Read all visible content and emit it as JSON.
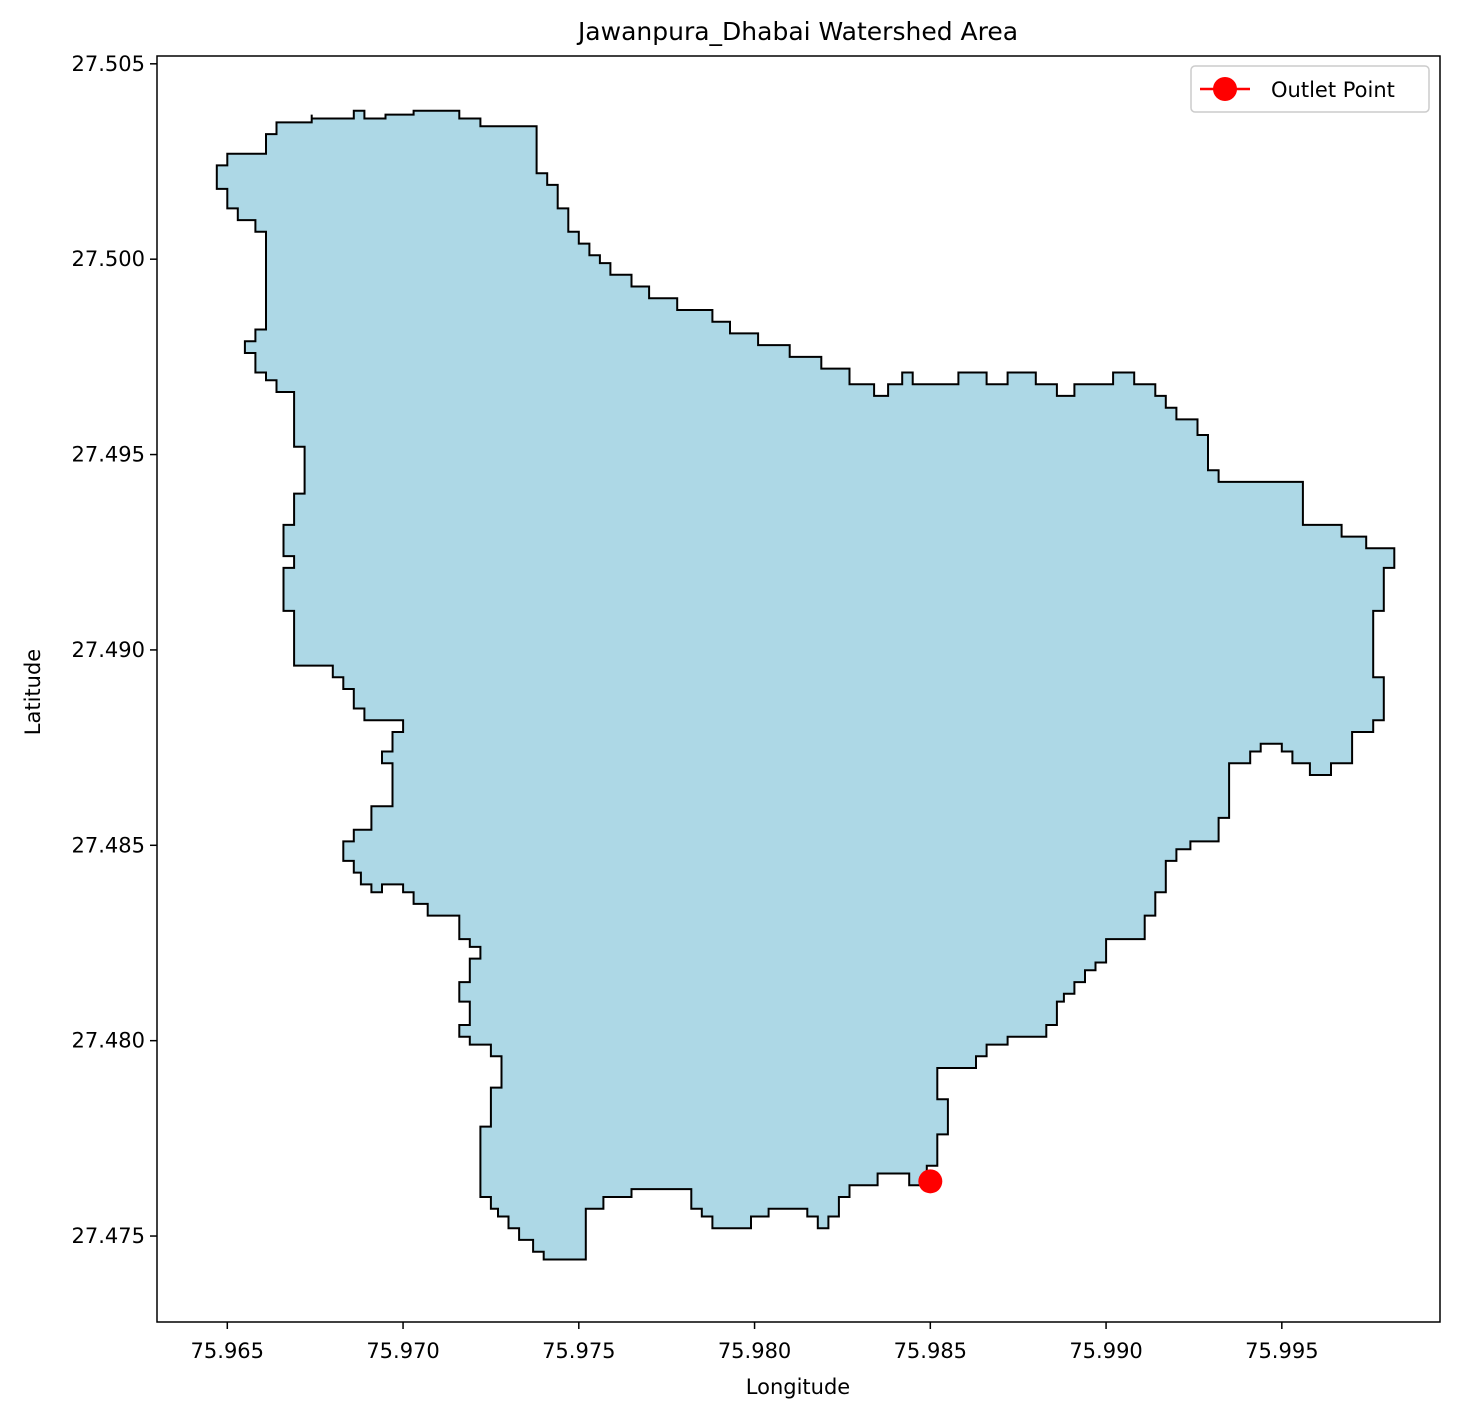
{
  "chart_data": {
    "type": "map",
    "title": "Jawanpura_Dhabai Watershed Area",
    "xlabel": "Longitude",
    "ylabel": "Latitude",
    "xlim": [
      75.963,
      75.9995
    ],
    "ylim": [
      27.4728,
      27.5052
    ],
    "x_ticks": [
      75.965,
      75.97,
      75.975,
      75.98,
      75.985,
      75.99,
      75.995
    ],
    "x_tick_labels": [
      "75.965",
      "75.970",
      "75.975",
      "75.980",
      "75.985",
      "75.990",
      "75.995"
    ],
    "y_ticks": [
      27.475,
      27.48,
      27.485,
      27.49,
      27.495,
      27.5,
      27.505
    ],
    "y_tick_labels": [
      "27.475",
      "27.480",
      "27.485",
      "27.490",
      "27.495",
      "27.500",
      "27.505"
    ],
    "grid": false,
    "legend": {
      "placement": "top-right",
      "entries": [
        {
          "label": "Outlet Point",
          "color": "#ff0000",
          "marker": "circle"
        }
      ]
    },
    "watershed_polygon": {
      "fill": "#add8e6",
      "edge": "#000000",
      "coords": [
        [
          75.9674,
          27.5037
        ],
        [
          75.9674,
          27.5036
        ],
        [
          75.9686,
          27.5036
        ],
        [
          75.9686,
          27.5038
        ],
        [
          75.9689,
          27.5038
        ],
        [
          75.9689,
          27.5036
        ],
        [
          75.9695,
          27.5036
        ],
        [
          75.9695,
          27.5037
        ],
        [
          75.9703,
          27.5037
        ],
        [
          75.9703,
          27.5038
        ],
        [
          75.9716,
          27.5038
        ],
        [
          75.9716,
          27.5036
        ],
        [
          75.9722,
          27.5036
        ],
        [
          75.9722,
          27.5034
        ],
        [
          75.9738,
          27.5034
        ],
        [
          75.9738,
          27.5022
        ],
        [
          75.9741,
          27.5022
        ],
        [
          75.9741,
          27.5019
        ],
        [
          75.9744,
          27.5019
        ],
        [
          75.9744,
          27.5013
        ],
        [
          75.9747,
          27.5013
        ],
        [
          75.9747,
          27.5007
        ],
        [
          75.975,
          27.5007
        ],
        [
          75.975,
          27.5004
        ],
        [
          75.9753,
          27.5004
        ],
        [
          75.9753,
          27.5001
        ],
        [
          75.9756,
          27.5001
        ],
        [
          75.9756,
          27.4999
        ],
        [
          75.9759,
          27.4999
        ],
        [
          75.9759,
          27.4996
        ],
        [
          75.9765,
          27.4996
        ],
        [
          75.9765,
          27.4993
        ],
        [
          75.977,
          27.4993
        ],
        [
          75.977,
          27.499
        ],
        [
          75.9778,
          27.499
        ],
        [
          75.9778,
          27.4987
        ],
        [
          75.9788,
          27.4987
        ],
        [
          75.9788,
          27.4984
        ],
        [
          75.9793,
          27.4984
        ],
        [
          75.9793,
          27.4981
        ],
        [
          75.9801,
          27.4981
        ],
        [
          75.9801,
          27.4978
        ],
        [
          75.981,
          27.4978
        ],
        [
          75.981,
          27.4975
        ],
        [
          75.9819,
          27.4975
        ],
        [
          75.9819,
          27.4972
        ],
        [
          75.9827,
          27.4972
        ],
        [
          75.9827,
          27.4968
        ],
        [
          75.9834,
          27.4968
        ],
        [
          75.9834,
          27.4965
        ],
        [
          75.9838,
          27.4965
        ],
        [
          75.9838,
          27.4968
        ],
        [
          75.9842,
          27.4968
        ],
        [
          75.9842,
          27.4971
        ],
        [
          75.9845,
          27.4971
        ],
        [
          75.9845,
          27.4968
        ],
        [
          75.9858,
          27.4968
        ],
        [
          75.9858,
          27.4971
        ],
        [
          75.9866,
          27.4971
        ],
        [
          75.9866,
          27.4968
        ],
        [
          75.9872,
          27.4968
        ],
        [
          75.9872,
          27.4971
        ],
        [
          75.988,
          27.4971
        ],
        [
          75.988,
          27.4968
        ],
        [
          75.9886,
          27.4968
        ],
        [
          75.9886,
          27.4965
        ],
        [
          75.9891,
          27.4965
        ],
        [
          75.9891,
          27.4968
        ],
        [
          75.9902,
          27.4968
        ],
        [
          75.9902,
          27.4971
        ],
        [
          75.9908,
          27.4971
        ],
        [
          75.9908,
          27.4968
        ],
        [
          75.9914,
          27.4968
        ],
        [
          75.9914,
          27.4965
        ],
        [
          75.9917,
          27.4965
        ],
        [
          75.9917,
          27.4962
        ],
        [
          75.992,
          27.4962
        ],
        [
          75.992,
          27.4959
        ],
        [
          75.9926,
          27.4959
        ],
        [
          75.9926,
          27.4955
        ],
        [
          75.9929,
          27.4955
        ],
        [
          75.9929,
          27.4946
        ],
        [
          75.9932,
          27.4946
        ],
        [
          75.9932,
          27.4943
        ],
        [
          75.9956,
          27.4943
        ],
        [
          75.9956,
          27.4932
        ],
        [
          75.9967,
          27.4932
        ],
        [
          75.9967,
          27.4929
        ],
        [
          75.9974,
          27.4929
        ],
        [
          75.9974,
          27.4926
        ],
        [
          75.9982,
          27.4926
        ],
        [
          75.9982,
          27.4921
        ],
        [
          75.9979,
          27.4921
        ],
        [
          75.9979,
          27.491
        ],
        [
          75.9976,
          27.491
        ],
        [
          75.9976,
          27.4893
        ],
        [
          75.9979,
          27.4893
        ],
        [
          75.9979,
          27.4882
        ],
        [
          75.9976,
          27.4882
        ],
        [
          75.9976,
          27.4879
        ],
        [
          75.997,
          27.4879
        ],
        [
          75.997,
          27.4871
        ],
        [
          75.9964,
          27.4871
        ],
        [
          75.9964,
          27.4868
        ],
        [
          75.9958,
          27.4868
        ],
        [
          75.9958,
          27.4871
        ],
        [
          75.9953,
          27.4871
        ],
        [
          75.9953,
          27.4874
        ],
        [
          75.995,
          27.4874
        ],
        [
          75.995,
          27.4876
        ],
        [
          75.9944,
          27.4876
        ],
        [
          75.9944,
          27.4874
        ],
        [
          75.9941,
          27.4874
        ],
        [
          75.9941,
          27.4871
        ],
        [
          75.9935,
          27.4871
        ],
        [
          75.9935,
          27.4857
        ],
        [
          75.9932,
          27.4857
        ],
        [
          75.9932,
          27.4851
        ],
        [
          75.9924,
          27.4851
        ],
        [
          75.9924,
          27.4849
        ],
        [
          75.992,
          27.4849
        ],
        [
          75.992,
          27.4846
        ],
        [
          75.9917,
          27.4846
        ],
        [
          75.9917,
          27.4838
        ],
        [
          75.9914,
          27.4838
        ],
        [
          75.9914,
          27.4832
        ],
        [
          75.9911,
          27.4832
        ],
        [
          75.9911,
          27.4826
        ],
        [
          75.99,
          27.4826
        ],
        [
          75.99,
          27.482
        ],
        [
          75.9897,
          27.482
        ],
        [
          75.9897,
          27.4818
        ],
        [
          75.9894,
          27.4818
        ],
        [
          75.9894,
          27.4815
        ],
        [
          75.9891,
          27.4815
        ],
        [
          75.9891,
          27.4812
        ],
        [
          75.9888,
          27.4812
        ],
        [
          75.9888,
          27.481
        ],
        [
          75.9886,
          27.481
        ],
        [
          75.9886,
          27.4804
        ],
        [
          75.9883,
          27.4804
        ],
        [
          75.9883,
          27.4801
        ],
        [
          75.9872,
          27.4801
        ],
        [
          75.9872,
          27.4799
        ],
        [
          75.9866,
          27.4799
        ],
        [
          75.9866,
          27.4796
        ],
        [
          75.9863,
          27.4796
        ],
        [
          75.9863,
          27.4793
        ],
        [
          75.9852,
          27.4793
        ],
        [
          75.9852,
          27.4785
        ],
        [
          75.9855,
          27.4785
        ],
        [
          75.9855,
          27.4776
        ],
        [
          75.9852,
          27.4776
        ],
        [
          75.9852,
          27.4768
        ],
        [
          75.9849,
          27.4768
        ],
        [
          75.9849,
          27.4763
        ],
        [
          75.9844,
          27.4763
        ],
        [
          75.9844,
          27.4766
        ],
        [
          75.9835,
          27.4766
        ],
        [
          75.9835,
          27.4763
        ],
        [
          75.9827,
          27.4763
        ],
        [
          75.9827,
          27.476
        ],
        [
          75.9824,
          27.476
        ],
        [
          75.9824,
          27.4755
        ],
        [
          75.9821,
          27.4755
        ],
        [
          75.9821,
          27.4752
        ],
        [
          75.9818,
          27.4752
        ],
        [
          75.9818,
          27.4755
        ],
        [
          75.9815,
          27.4755
        ],
        [
          75.9815,
          27.4757
        ],
        [
          75.9804,
          27.4757
        ],
        [
          75.9804,
          27.4755
        ],
        [
          75.9799,
          27.4755
        ],
        [
          75.9799,
          27.4752
        ],
        [
          75.9788,
          27.4752
        ],
        [
          75.9788,
          27.4755
        ],
        [
          75.9785,
          27.4755
        ],
        [
          75.9785,
          27.4757
        ],
        [
          75.9782,
          27.4757
        ],
        [
          75.9782,
          27.4762
        ],
        [
          75.9765,
          27.4762
        ],
        [
          75.9765,
          27.476
        ],
        [
          75.9757,
          27.476
        ],
        [
          75.9757,
          27.4757
        ],
        [
          75.9752,
          27.4757
        ],
        [
          75.9752,
          27.4744
        ],
        [
          75.974,
          27.4744
        ],
        [
          75.974,
          27.4746
        ],
        [
          75.9737,
          27.4746
        ],
        [
          75.9737,
          27.4749
        ],
        [
          75.9733,
          27.4749
        ],
        [
          75.9733,
          27.4752
        ],
        [
          75.973,
          27.4752
        ],
        [
          75.973,
          27.4755
        ],
        [
          75.9727,
          27.4755
        ],
        [
          75.9727,
          27.4757
        ],
        [
          75.9725,
          27.4757
        ],
        [
          75.9725,
          27.476
        ],
        [
          75.9722,
          27.476
        ],
        [
          75.9722,
          27.4778
        ],
        [
          75.9725,
          27.4778
        ],
        [
          75.9725,
          27.4788
        ],
        [
          75.9728,
          27.4788
        ],
        [
          75.9728,
          27.4796
        ],
        [
          75.9725,
          27.4796
        ],
        [
          75.9725,
          27.4799
        ],
        [
          75.9719,
          27.4799
        ],
        [
          75.9719,
          27.4801
        ],
        [
          75.9716,
          27.4801
        ],
        [
          75.9716,
          27.4804
        ],
        [
          75.9719,
          27.4804
        ],
        [
          75.9719,
          27.481
        ],
        [
          75.9716,
          27.481
        ],
        [
          75.9716,
          27.4815
        ],
        [
          75.9719,
          27.4815
        ],
        [
          75.9719,
          27.4821
        ],
        [
          75.9722,
          27.4821
        ],
        [
          75.9722,
          27.4824
        ],
        [
          75.9719,
          27.4824
        ],
        [
          75.9719,
          27.4826
        ],
        [
          75.9716,
          27.4826
        ],
        [
          75.9716,
          27.4832
        ],
        [
          75.9707,
          27.4832
        ],
        [
          75.9707,
          27.4835
        ],
        [
          75.9703,
          27.4835
        ],
        [
          75.9703,
          27.4838
        ],
        [
          75.97,
          27.4838
        ],
        [
          75.97,
          27.484
        ],
        [
          75.9694,
          27.484
        ],
        [
          75.9694,
          27.4838
        ],
        [
          75.9691,
          27.4838
        ],
        [
          75.9691,
          27.484
        ],
        [
          75.9688,
          27.484
        ],
        [
          75.9688,
          27.4843
        ],
        [
          75.9686,
          27.4843
        ],
        [
          75.9686,
          27.4846
        ],
        [
          75.9683,
          27.4846
        ],
        [
          75.9683,
          27.4851
        ],
        [
          75.9686,
          27.4851
        ],
        [
          75.9686,
          27.4854
        ],
        [
          75.9691,
          27.4854
        ],
        [
          75.9691,
          27.486
        ],
        [
          75.9697,
          27.486
        ],
        [
          75.9697,
          27.4871
        ],
        [
          75.9694,
          27.4871
        ],
        [
          75.9694,
          27.4874
        ],
        [
          75.9697,
          27.4874
        ],
        [
          75.9697,
          27.4879
        ],
        [
          75.97,
          27.4879
        ],
        [
          75.97,
          27.4882
        ],
        [
          75.9689,
          27.4882
        ],
        [
          75.9689,
          27.4885
        ],
        [
          75.9686,
          27.4885
        ],
        [
          75.9686,
          27.489
        ],
        [
          75.9683,
          27.489
        ],
        [
          75.9683,
          27.4893
        ],
        [
          75.968,
          27.4893
        ],
        [
          75.968,
          27.4896
        ],
        [
          75.9669,
          27.4896
        ],
        [
          75.9669,
          27.491
        ],
        [
          75.9666,
          27.491
        ],
        [
          75.9666,
          27.4921
        ],
        [
          75.9669,
          27.4921
        ],
        [
          75.9669,
          27.4924
        ],
        [
          75.9666,
          27.4924
        ],
        [
          75.9666,
          27.4932
        ],
        [
          75.9669,
          27.4932
        ],
        [
          75.9669,
          27.494
        ],
        [
          75.9672,
          27.494
        ],
        [
          75.9672,
          27.4952
        ],
        [
          75.9669,
          27.4952
        ],
        [
          75.9669,
          27.4966
        ],
        [
          75.9664,
          27.4966
        ],
        [
          75.9664,
          27.4969
        ],
        [
          75.9661,
          27.4969
        ],
        [
          75.9661,
          27.4971
        ],
        [
          75.9658,
          27.4971
        ],
        [
          75.9658,
          27.4976
        ],
        [
          75.9655,
          27.4976
        ],
        [
          75.9655,
          27.4979
        ],
        [
          75.9658,
          27.4979
        ],
        [
          75.9658,
          27.4982
        ],
        [
          75.9661,
          27.4982
        ],
        [
          75.9661,
          27.5007
        ],
        [
          75.9658,
          27.5007
        ],
        [
          75.9658,
          27.501
        ],
        [
          75.9653,
          27.501
        ],
        [
          75.9653,
          27.5013
        ],
        [
          75.965,
          27.5013
        ],
        [
          75.965,
          27.5018
        ],
        [
          75.9647,
          27.5018
        ],
        [
          75.9647,
          27.5024
        ],
        [
          75.965,
          27.5024
        ],
        [
          75.965,
          27.5027
        ],
        [
          75.9661,
          27.5027
        ],
        [
          75.9661,
          27.5032
        ],
        [
          75.9664,
          27.5032
        ],
        [
          75.9664,
          27.5035
        ],
        [
          75.9674,
          27.5035
        ]
      ]
    },
    "outlet_point": {
      "label": "Outlet Point",
      "x": 75.985,
      "y": 27.4764,
      "color": "#ff0000"
    }
  }
}
